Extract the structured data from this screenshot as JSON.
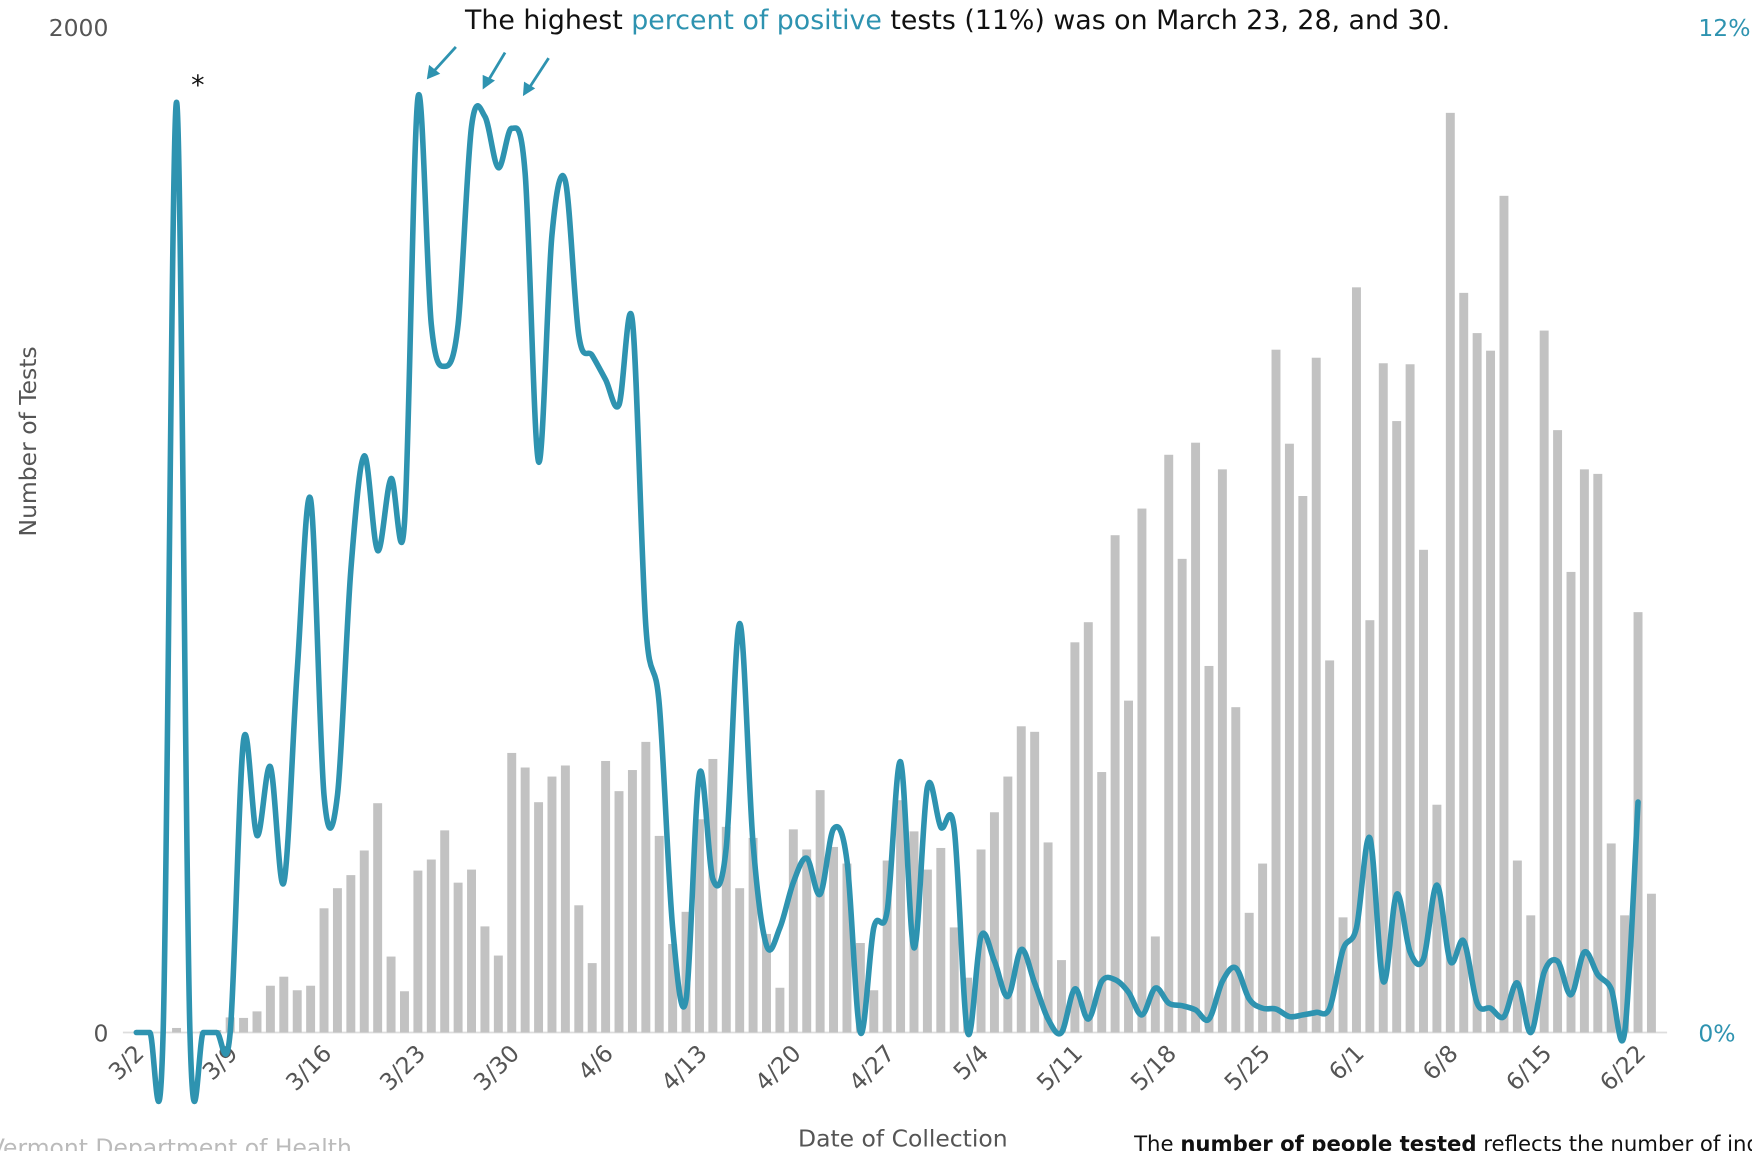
{
  "chart_data": {
    "type": "combo",
    "annotation": {
      "before": "The highest ",
      "highlight": "percent of positive",
      "after": " tests (11%) was on March 23, 28, and 30."
    },
    "asterisk": "*",
    "ylabel": "Number of Tests",
    "xlabel": "Date of Collection",
    "source": "Vermont Department of Health",
    "note": {
      "before": "The ",
      "bold": "number of people tested",
      "after": " reflects the number of ind"
    },
    "ylim": [
      0,
      2000
    ],
    "yticks": [
      0,
      2000
    ],
    "y2lim": [
      0,
      12
    ],
    "y2ticks": [
      {
        "value": 0,
        "label": "0%"
      },
      {
        "value": 12,
        "label": "12%"
      }
    ],
    "categories": [
      "3/2",
      null,
      null,
      null,
      null,
      null,
      null,
      "3/9",
      null,
      null,
      null,
      null,
      null,
      null,
      "3/16",
      null,
      null,
      null,
      null,
      null,
      null,
      "3/23",
      null,
      null,
      null,
      null,
      null,
      null,
      "3/30",
      null,
      null,
      null,
      null,
      null,
      null,
      "4/6",
      null,
      null,
      null,
      null,
      null,
      null,
      "4/13",
      null,
      null,
      null,
      null,
      null,
      null,
      "4/20",
      null,
      null,
      null,
      null,
      null,
      null,
      "4/27",
      null,
      null,
      null,
      null,
      null,
      null,
      "5/4",
      null,
      null,
      null,
      null,
      null,
      null,
      "5/11",
      null,
      null,
      null,
      null,
      null,
      null,
      "5/18",
      null,
      null,
      null,
      null,
      null,
      null,
      "5/25",
      null,
      null,
      null,
      null,
      null,
      null,
      "6/1",
      null,
      null,
      null,
      null,
      null,
      null,
      "6/8",
      null,
      null,
      null,
      null,
      null,
      null,
      "6/15",
      null,
      null,
      null,
      null,
      null,
      null,
      "6/22",
      null
    ],
    "series": [
      {
        "type": "bar",
        "color": "#c2c2c2",
        "values": [
          0,
          0,
          0,
          9,
          0,
          2,
          5,
          30,
          29,
          42,
          93,
          111,
          84,
          93,
          247,
          287,
          313,
          362,
          456,
          151,
          82,
          322,
          344,
          402,
          298,
          324,
          211,
          153,
          556,
          527,
          458,
          509,
          531,
          253,
          138,
          540,
          480,
          522,
          578,
          391,
          176,
          240,
          424,
          544,
          409,
          287,
          387,
          196,
          89,
          404,
          364,
          482,
          369,
          336,
          178,
          84,
          342,
          462,
          400,
          324,
          367,
          209,
          109,
          364,
          438,
          509,
          609,
          598,
          378,
          144,
          776,
          816,
          518,
          989,
          660,
          1042,
          191,
          1149,
          942,
          1173,
          729,
          1120,
          647,
          238,
          336,
          1358,
          1171,
          1067,
          1342,
          740,
          229,
          1482,
          820,
          1331,
          1216,
          1329,
          960,
          453,
          1829,
          1471,
          1391,
          1356,
          1664,
          342,
          233,
          1396,
          1198,
          916,
          1120,
          1111,
          376,
          233,
          836,
          276
        ]
      },
      {
        "type": "line",
        "axis": "y2",
        "color": "#2e93b0",
        "values": [
          0,
          0,
          0,
          11.1,
          0,
          0,
          0,
          0,
          3.49,
          2.35,
          3.17,
          1.79,
          4.32,
          6.36,
          2.83,
          2.83,
          5.52,
          6.88,
          5.75,
          6.61,
          6.08,
          11.15,
          8.45,
          7.95,
          8.45,
          10.81,
          10.93,
          10.32,
          10.79,
          10.25,
          6.81,
          9.52,
          10.16,
          8.32,
          8.08,
          7.79,
          7.49,
          8.49,
          4.85,
          3.92,
          1.25,
          0.39,
          3.09,
          1.83,
          2.21,
          4.88,
          2.25,
          1.04,
          1.25,
          1.79,
          2.08,
          1.65,
          2.43,
          2.05,
          0,
          1.25,
          1.45,
          3.23,
          1.01,
          2.93,
          2.45,
          2.43,
          0,
          1.15,
          0.85,
          0.43,
          0.99,
          0.59,
          0.16,
          0,
          0.52,
          0.16,
          0.61,
          0.63,
          0.48,
          0.21,
          0.53,
          0.35,
          0.32,
          0.27,
          0.16,
          0.61,
          0.77,
          0.4,
          0.29,
          0.28,
          0.19,
          0.21,
          0.24,
          0.29,
          0.99,
          1.25,
          2.32,
          0.61,
          1.65,
          0.96,
          0.88,
          1.76,
          0.85,
          1.09,
          0.35,
          0.29,
          0.19,
          0.59,
          0,
          0.72,
          0.85,
          0.45,
          0.96,
          0.69,
          0.52,
          0,
          2.75,
          null
        ]
      }
    ]
  }
}
